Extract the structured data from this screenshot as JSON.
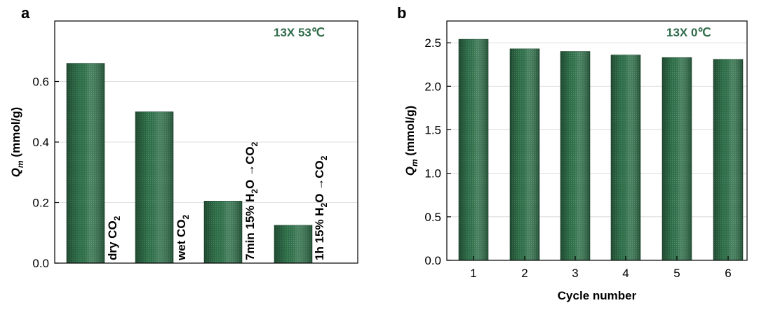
{
  "colors": {
    "bar": "#2a6a44",
    "annotation": "#2f6b4a"
  },
  "chart_data": [
    {
      "panel": "a",
      "type": "bar",
      "annotation": "13X  53℃",
      "ylabel": {
        "symbol": "Q",
        "subscript": "m",
        "unit": " (mmol/g)"
      },
      "xlabel": "",
      "ylim": [
        0,
        0.8
      ],
      "yticks": [
        "0.0",
        "0.2",
        "0.4",
        "0.6"
      ],
      "grid": true,
      "categories": [
        {
          "label": "dry CO",
          "sub": "2"
        },
        {
          "label": "wet CO",
          "sub": "2"
        },
        {
          "parts": [
            "7min 15% H",
            "2",
            "O  →CO",
            "2"
          ]
        },
        {
          "parts": [
            "1h    15% H",
            "2",
            "O  →CO",
            "2"
          ]
        }
      ],
      "values": [
        0.66,
        0.5,
        0.205,
        0.125
      ]
    },
    {
      "panel": "b",
      "type": "bar",
      "annotation": "13X  0℃",
      "ylabel": {
        "symbol": "Q",
        "subscript": "m",
        "unit": " (mmol/g)"
      },
      "xlabel": "Cycle number",
      "ylim": [
        0,
        2.75
      ],
      "yticks": [
        "0.0",
        "0.5",
        "1.0",
        "1.5",
        "2.0",
        "2.5"
      ],
      "grid": true,
      "categories": [
        "1",
        "2",
        "3",
        "4",
        "5",
        "6"
      ],
      "values": [
        2.54,
        2.43,
        2.4,
        2.36,
        2.33,
        2.31
      ]
    }
  ]
}
